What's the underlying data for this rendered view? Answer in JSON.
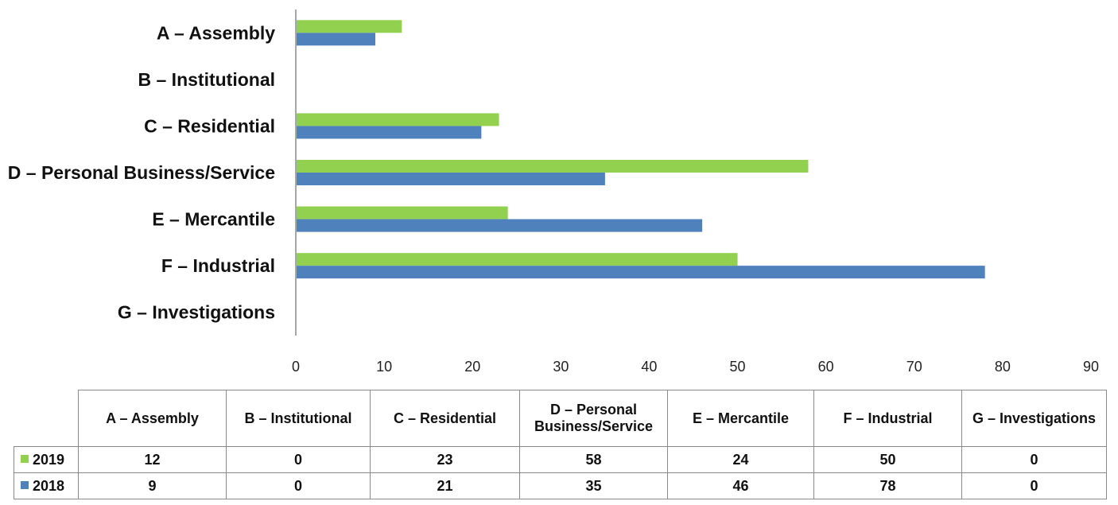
{
  "chart_data": {
    "type": "bar",
    "orientation": "horizontal",
    "categories": [
      "A – Assembly",
      "B – Institutional",
      "C – Residential",
      "D – Personal Business/Service",
      "E – Mercantile",
      "F – Industrial",
      "G – Investigations"
    ],
    "table_headers": [
      "A – Assembly",
      "B – Institutional",
      "C – Residential",
      "D – Personal Business/Service",
      "E – Mercantile",
      "F – Industrial",
      "G – Investigations"
    ],
    "series": [
      {
        "name": "2019",
        "color": "#92d050",
        "values": [
          12,
          0,
          23,
          58,
          24,
          50,
          0
        ]
      },
      {
        "name": "2018",
        "color": "#4f81bd",
        "values": [
          9,
          0,
          21,
          35,
          46,
          78,
          0
        ]
      }
    ],
    "xlim": [
      0,
      90
    ],
    "xticks": [
      0,
      10,
      20,
      30,
      40,
      50,
      60,
      70,
      80,
      90
    ],
    "title": "",
    "xlabel": "",
    "ylabel": "",
    "grid": false,
    "legend": "data-table"
  }
}
